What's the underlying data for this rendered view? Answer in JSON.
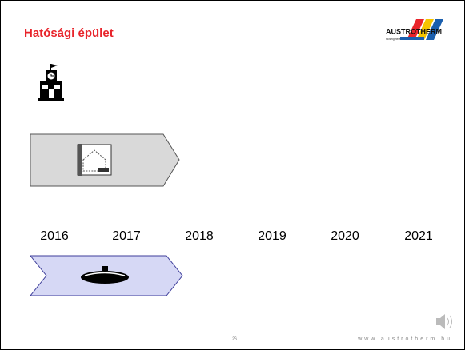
{
  "header": {
    "title": "Hatósági épület"
  },
  "logo": {
    "name": "AUSTROTHERM",
    "tagline": "Hőszigetelés"
  },
  "timeline": {
    "years": [
      "2016",
      "2017",
      "2018",
      "2019",
      "2020",
      "2021"
    ]
  },
  "footer": {
    "page": "26",
    "url": "www.austrotherm.hu"
  }
}
